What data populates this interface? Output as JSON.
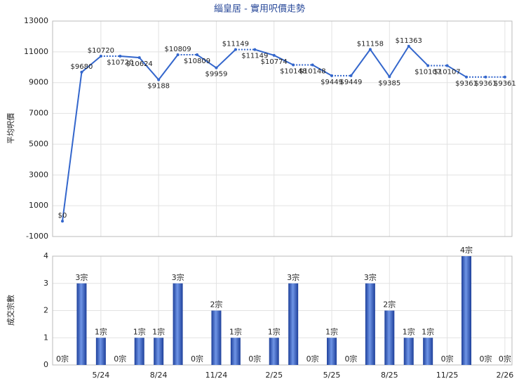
{
  "chart_data": [
    {
      "type": "line",
      "title": "緇皇居 - 實用呎價走勢",
      "y_label": "平均呎價",
      "color": "#3366cc",
      "values": [
        0,
        9680,
        10720,
        10720,
        10624,
        9188,
        10809,
        10809,
        9959,
        11149,
        11149,
        10774,
        10148,
        10148,
        9449,
        9449,
        11158,
        9385,
        11363,
        10107,
        10107,
        9361,
        9361,
        9361
      ],
      "value_labels": [
        "$0",
        "$9680",
        "$10720",
        "$10720",
        "$10624",
        "$9188",
        "$10809",
        "$10809",
        "$9959",
        "$11149",
        "$11149",
        "$10774",
        "$10148",
        "$10148",
        "$9449",
        "$9449",
        "$11158",
        "$9385",
        "$11363",
        "$10107",
        "$10107",
        "$9361",
        "$9361",
        "$9361"
      ],
      "ylim": [
        -1000,
        13000
      ],
      "yticks": [
        -1000,
        1000,
        3000,
        5000,
        7000,
        9000,
        11000,
        13000
      ],
      "grid": true
    },
    {
      "type": "bar",
      "y_label": "成交宗數",
      "color": "#2f58b8",
      "categories": [
        null,
        null,
        "5/24",
        null,
        null,
        "8/24",
        null,
        null,
        "11/24",
        null,
        null,
        "2/25",
        null,
        null,
        "5/25",
        null,
        null,
        "8/25",
        null,
        null,
        "11/25",
        null,
        null,
        "2/26"
      ],
      "values": [
        0,
        3,
        1,
        0,
        1,
        1,
        3,
        0,
        2,
        1,
        0,
        1,
        3,
        0,
        1,
        0,
        3,
        2,
        1,
        1,
        0,
        4,
        0,
        0
      ],
      "value_labels": [
        "0宗",
        "3宗",
        "1宗",
        "0宗",
        "1宗",
        "1宗",
        "3宗",
        "0宗",
        "2宗",
        "1宗",
        "0宗",
        "1宗",
        "3宗",
        "0宗",
        "1宗",
        "0宗",
        "3宗",
        "2宗",
        "1宗",
        "1宗",
        "0宗",
        "4宗",
        "0宗",
        "0宗"
      ],
      "ylim": [
        0,
        4
      ],
      "yticks": [
        0,
        1,
        2,
        3,
        4
      ],
      "grid": true
    }
  ]
}
